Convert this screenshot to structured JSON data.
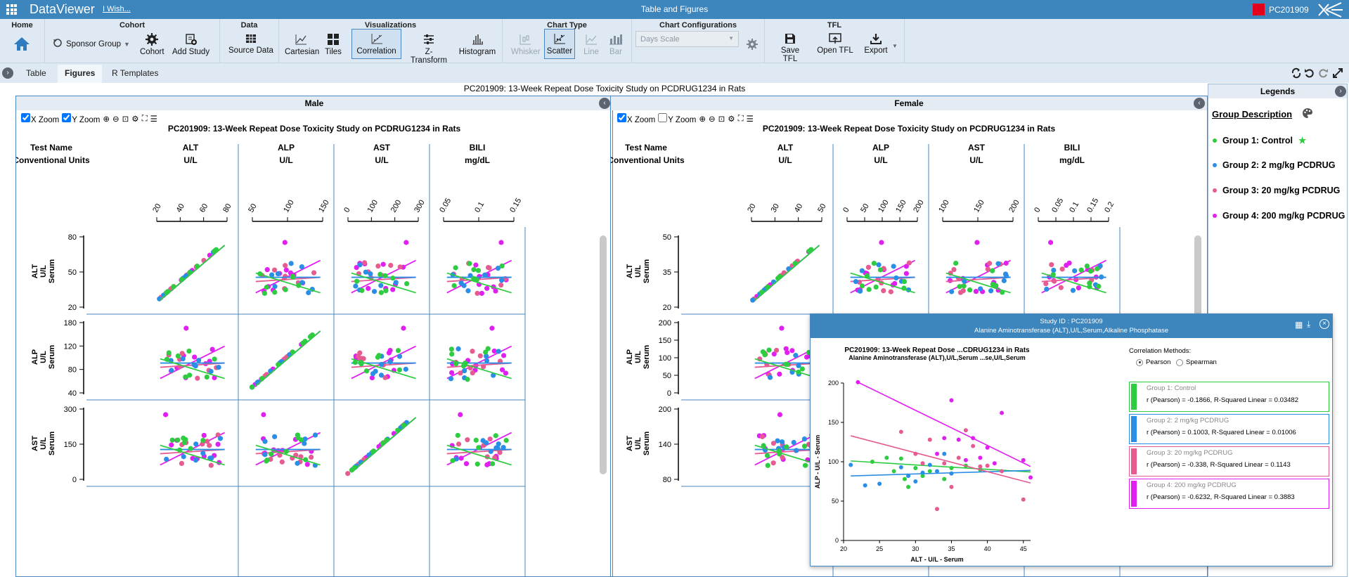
{
  "app": {
    "name": "DataViewer",
    "wish": "I Wish...",
    "title": "Table and Figures",
    "study": "PC201909"
  },
  "ribbon": {
    "home": {
      "title": "Home"
    },
    "cohort": {
      "title": "Cohort",
      "sponsor": "Sponsor Group",
      "cohort": "Cohort",
      "add": "Add Study"
    },
    "data": {
      "title": "Data",
      "source": "Source Data"
    },
    "viz": {
      "title": "Visualizations",
      "items": [
        "Cartesian",
        "Tiles",
        "Correlation",
        "Z-Transform",
        "Histogram"
      ]
    },
    "ctype": {
      "title": "Chart Type",
      "items": [
        "Whisker",
        "Scatter",
        "Line",
        "Bar"
      ]
    },
    "cconf": {
      "title": "Chart Configurations",
      "scale": "Days Scale"
    },
    "tfl": {
      "title": "TFL",
      "items": [
        "Save TFL",
        "Open TFL",
        "Export"
      ]
    }
  },
  "tabs": [
    "Table",
    "Figures",
    "R Templates"
  ],
  "figure": {
    "title": "PC201909: 13-Week Repeat Dose Toxicity Study on PCDRUG1234 in Rats",
    "xzoom": "X Zoom",
    "yzoom": "Y Zoom"
  },
  "colors": {
    "g1": "#2ecc40",
    "g2": "#2b8ee6",
    "g3": "#e55b92",
    "g4": "#e020f0",
    "accent": "#3c85bd"
  },
  "matrix": {
    "test_name_label": "Test Name",
    "units_label": "Conventional Units",
    "tests": [
      "ALT",
      "ALP",
      "AST",
      "BILI"
    ],
    "units": [
      "U/L",
      "U/L",
      "U/L",
      "mg/dL"
    ],
    "rows": [
      {
        "name": "ALT",
        "unit": "U/L",
        "spec": "Serum"
      },
      {
        "name": "ALP",
        "unit": "U/L",
        "spec": "Serum"
      },
      {
        "name": "AST",
        "unit": "U/L",
        "spec": "Serum"
      }
    ]
  },
  "male": {
    "header": "Male",
    "xticks": [
      [
        "20",
        "40",
        "60",
        "80"
      ],
      [
        "50",
        "100",
        "150"
      ],
      [
        "0",
        "100",
        "200",
        "300"
      ],
      [
        "0.05",
        "0.1",
        "0.15"
      ]
    ],
    "yticks": [
      [
        "80",
        "50",
        "20"
      ],
      [
        "180",
        "120",
        "80",
        "40"
      ],
      [
        "300",
        "150",
        "0"
      ]
    ]
  },
  "female": {
    "header": "Female",
    "xticks": [
      [
        "20",
        "30",
        "40",
        "50"
      ],
      [
        "0",
        "50",
        "100",
        "150",
        "200"
      ],
      [
        "100",
        "150",
        "200"
      ],
      [
        "0",
        "0.05",
        "0.1",
        "0.15",
        "0.2"
      ]
    ],
    "yticks": [
      [
        "50",
        "35",
        "20"
      ],
      [
        "200",
        "150",
        "100",
        "50",
        "0"
      ],
      [
        "200",
        "140",
        "80"
      ]
    ]
  },
  "legend": {
    "title": "Legends",
    "desc": "Group Description",
    "groups": [
      "Group 1: Control",
      "Group 2: 2 mg/kg PCDRUG",
      "Group 3: 20 mg/kg PCDRUG",
      "Group 4: 200 mg/kg PCDRUG"
    ]
  },
  "popup": {
    "h1": "Study ID : PC201909",
    "h2": "Alanine Aminotransferase (ALT),U/L,Serum,Alkaline Phosphatase",
    "t1": "PC201909: 13-Week Repeat Dose  ...CDRUG1234 in Rats",
    "t2": "Alanine Aminotransferase (ALT),U/L,Serum  ...se,U/L,Serum",
    "methods_label": "Correlation Methods:",
    "methods": [
      "Pearson",
      "Spearman"
    ],
    "groups": [
      {
        "name": "Group 1: Control",
        "stat": "r (Pearson) = -0.1866, R-Squared Linear = 0.03482"
      },
      {
        "name": "Group 2: 2 mg/kg PCDRUG",
        "stat": "r (Pearson) = 0.1003, R-Squared Linear = 0.01006"
      },
      {
        "name": "Group 3: 20 mg/kg PCDRUG",
        "stat": "r (Pearson) = -0.338, R-Squared Linear = 0.1143"
      },
      {
        "name": "Group 4: 200 mg/kg PCDRUG",
        "stat": "r (Pearson) = -0.6232, R-Squared Linear = 0.3883"
      }
    ]
  },
  "chart_data": {
    "type": "scatter",
    "xlabel": "ALT - U/L - Serum",
    "ylabel": "ALP - U/L - Serum",
    "xlim": [
      20,
      46
    ],
    "ylim": [
      0,
      200
    ],
    "xticks": [
      20,
      25,
      30,
      35,
      40,
      45
    ],
    "yticks": [
      0,
      50,
      100,
      150,
      200
    ],
    "series": [
      {
        "name": "Group 1: Control",
        "points": [
          [
            24,
            100
          ],
          [
            26,
            105
          ],
          [
            27,
            88
          ],
          [
            28,
            104
          ],
          [
            28.5,
            78
          ],
          [
            29,
            68
          ],
          [
            30,
            92
          ],
          [
            31,
            82
          ],
          [
            32,
            88
          ],
          [
            34,
            78
          ],
          [
            35,
            92
          ],
          [
            37,
            95
          ],
          [
            39,
            90
          ]
        ],
        "fit": [
          [
            21,
            101
          ],
          [
            46,
            87
          ]
        ]
      },
      {
        "name": "Group 2: 2 mg/kg PCDRUG",
        "points": [
          [
            21,
            96
          ],
          [
            23,
            70
          ],
          [
            25,
            72
          ],
          [
            28,
            93
          ],
          [
            29,
            82
          ],
          [
            30,
            75
          ],
          [
            31,
            86
          ],
          [
            32,
            96
          ],
          [
            33,
            88
          ],
          [
            34,
            110
          ],
          [
            35,
            85
          ]
        ],
        "fit": [
          [
            21,
            82
          ],
          [
            46,
            89
          ]
        ]
      },
      {
        "name": "Group 3: 20 mg/kg PCDRUG",
        "points": [
          [
            28,
            138
          ],
          [
            30,
            110
          ],
          [
            31,
            98
          ],
          [
            32,
            128
          ],
          [
            33,
            40
          ],
          [
            34,
            98
          ],
          [
            35,
            68
          ],
          [
            36,
            105
          ],
          [
            37,
            140
          ],
          [
            38,
            120
          ],
          [
            39,
            94
          ],
          [
            40,
            95
          ],
          [
            42,
            88
          ],
          [
            45,
            52
          ]
        ],
        "fit": [
          [
            21,
            133
          ],
          [
            46,
            73
          ]
        ]
      },
      {
        "name": "Group 4: 200 mg/kg PCDRUG",
        "points": [
          [
            22,
            201
          ],
          [
            33,
            110
          ],
          [
            34,
            130
          ],
          [
            35,
            178
          ],
          [
            36,
            128
          ],
          [
            37,
            102
          ],
          [
            38,
            130
          ],
          [
            39,
            105
          ],
          [
            40,
            118
          ],
          [
            41,
            98
          ],
          [
            42,
            162
          ],
          [
            45,
            102
          ],
          [
            46,
            80
          ]
        ],
        "fit": [
          [
            22,
            201
          ],
          [
            46,
            94
          ]
        ]
      }
    ]
  }
}
